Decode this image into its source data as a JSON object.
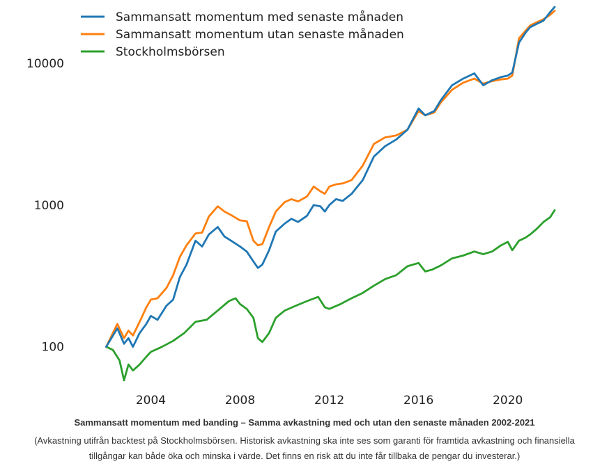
{
  "chart_data": {
    "type": "line",
    "yscale": "log",
    "ylim": [
      50,
      25000
    ],
    "xlim": [
      2001.3,
      2022.6
    ],
    "y_ticks": [
      {
        "value": 100,
        "label": "100"
      },
      {
        "value": 1000,
        "label": "1000"
      },
      {
        "value": 10000,
        "label": "10000"
      }
    ],
    "x_ticks": [
      {
        "value": 2004,
        "label": "2004"
      },
      {
        "value": 2008,
        "label": "2008"
      },
      {
        "value": 2012,
        "label": "2012"
      },
      {
        "value": 2016,
        "label": "2016"
      },
      {
        "value": 2020,
        "label": "2020"
      }
    ],
    "legend_position": "top-left",
    "series": [
      {
        "name": "Sammansatt momentum med senaste månaden",
        "color": "#1f77b4",
        "x": [
          2002.0,
          2002.5,
          2002.8,
          2003.0,
          2003.2,
          2003.5,
          2003.8,
          2004.0,
          2004.3,
          2004.7,
          2005.0,
          2005.3,
          2005.6,
          2006.0,
          2006.3,
          2006.6,
          2007.0,
          2007.3,
          2007.6,
          2008.0,
          2008.3,
          2008.6,
          2008.8,
          2009.0,
          2009.3,
          2009.6,
          2010.0,
          2010.3,
          2010.6,
          2011.0,
          2011.3,
          2011.6,
          2011.8,
          2012.0,
          2012.3,
          2012.6,
          2013.0,
          2013.5,
          2014.0,
          2014.5,
          2015.0,
          2015.5,
          2016.0,
          2016.3,
          2016.7,
          2017.0,
          2017.5,
          2018.0,
          2018.5,
          2018.9,
          2019.3,
          2019.7,
          2020.0,
          2020.2,
          2020.5,
          2020.8,
          2021.0,
          2021.3,
          2021.6,
          2021.9,
          2022.1
        ],
        "values": [
          100,
          135,
          105,
          115,
          100,
          125,
          145,
          165,
          155,
          195,
          215,
          310,
          380,
          560,
          510,
          620,
          700,
          600,
          560,
          510,
          470,
          400,
          360,
          380,
          480,
          650,
          740,
          800,
          760,
          840,
          1000,
          980,
          900,
          1000,
          1100,
          1070,
          1200,
          1500,
          2200,
          2600,
          2900,
          3400,
          4800,
          4300,
          4600,
          5500,
          7000,
          7800,
          8500,
          7000,
          7600,
          8000,
          8200,
          8600,
          14000,
          16500,
          18000,
          19000,
          20000,
          23000,
          25000
        ]
      },
      {
        "name": "Sammansatt momentum utan senaste månaden",
        "color": "#ff7f0e",
        "x": [
          2002.0,
          2002.5,
          2002.8,
          2003.0,
          2003.2,
          2003.5,
          2003.8,
          2004.0,
          2004.3,
          2004.7,
          2005.0,
          2005.3,
          2005.6,
          2006.0,
          2006.3,
          2006.6,
          2007.0,
          2007.3,
          2007.6,
          2008.0,
          2008.3,
          2008.6,
          2008.8,
          2009.0,
          2009.3,
          2009.6,
          2010.0,
          2010.3,
          2010.6,
          2011.0,
          2011.3,
          2011.6,
          2011.8,
          2012.0,
          2012.3,
          2012.6,
          2013.0,
          2013.5,
          2014.0,
          2014.5,
          2015.0,
          2015.5,
          2016.0,
          2016.3,
          2016.7,
          2017.0,
          2017.5,
          2018.0,
          2018.5,
          2018.9,
          2019.3,
          2019.7,
          2020.0,
          2020.2,
          2020.5,
          2020.8,
          2021.0,
          2021.3,
          2021.6,
          2021.9,
          2022.1
        ],
        "values": [
          100,
          145,
          115,
          130,
          120,
          150,
          190,
          215,
          220,
          260,
          320,
          430,
          520,
          630,
          640,
          830,
          980,
          900,
          850,
          780,
          770,
          560,
          520,
          530,
          700,
          900,
          1050,
          1100,
          1060,
          1150,
          1350,
          1250,
          1200,
          1350,
          1400,
          1420,
          1500,
          1900,
          2700,
          3000,
          3100,
          3400,
          4600,
          4300,
          4500,
          5300,
          6500,
          7300,
          7800,
          7200,
          7500,
          7700,
          7800,
          8200,
          15000,
          17000,
          18500,
          19500,
          20500,
          22000,
          23500
        ]
      },
      {
        "name": "Stockholmsbörsen",
        "color": "#2ca02c",
        "x": [
          2002.0,
          2002.3,
          2002.6,
          2002.8,
          2003.0,
          2003.2,
          2003.5,
          2003.8,
          2004.0,
          2004.5,
          2005.0,
          2005.5,
          2006.0,
          2006.5,
          2007.0,
          2007.5,
          2007.8,
          2008.0,
          2008.3,
          2008.6,
          2008.8,
          2009.0,
          2009.3,
          2009.6,
          2010.0,
          2010.5,
          2011.0,
          2011.5,
          2011.8,
          2012.0,
          2012.5,
          2013.0,
          2013.5,
          2014.0,
          2014.5,
          2015.0,
          2015.5,
          2016.0,
          2016.3,
          2016.6,
          2017.0,
          2017.5,
          2018.0,
          2018.5,
          2018.9,
          2019.3,
          2019.7,
          2020.0,
          2020.2,
          2020.5,
          2020.8,
          2021.0,
          2021.3,
          2021.6,
          2021.9,
          2022.1
        ],
        "values": [
          100,
          95,
          80,
          58,
          75,
          68,
          75,
          85,
          92,
          100,
          110,
          125,
          150,
          155,
          180,
          210,
          220,
          200,
          185,
          160,
          115,
          108,
          125,
          160,
          180,
          195,
          210,
          225,
          190,
          185,
          200,
          220,
          240,
          270,
          300,
          320,
          370,
          390,
          340,
          350,
          375,
          420,
          440,
          470,
          450,
          470,
          520,
          550,
          480,
          560,
          590,
          620,
          680,
          760,
          820,
          920
        ]
      }
    ]
  },
  "caption": {
    "title": "Sammansatt momentum med banding – Samma avkastning med och utan den senaste månaden 2002-2021",
    "note": "(Avkastning utifrån backtest på Stockholmsbörsen. Historisk avkastning ska inte ses som garanti för framtida avkastning och finansiella tillgångar kan både öka och minska i värde. Det finns en risk att du inte får tillbaka de pengar du investerar.)"
  }
}
